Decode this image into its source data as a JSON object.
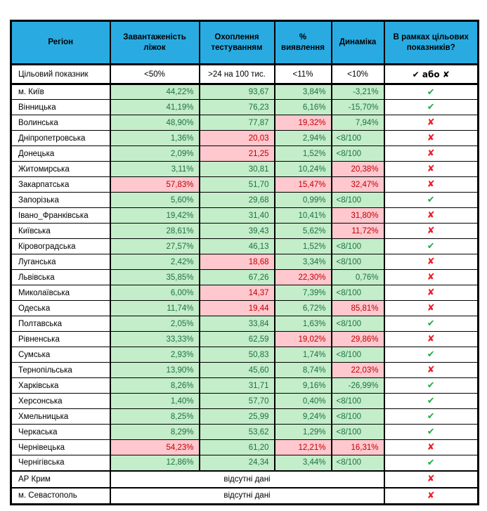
{
  "colors": {
    "header_bg": "#29ABE2",
    "good_bg": "#C4EDC9",
    "good_text": "#1E7145",
    "bad_bg": "#FFC7CE",
    "bad_text": "#C00000",
    "check_green": "#22AC41",
    "cross_red": "#ED1C24",
    "border": "#000000"
  },
  "glyphs": {
    "check": "✔",
    "cross": "✘"
  },
  "table": {
    "columns": [
      "Регіон",
      "Завантаженість ліжок",
      "Охоплення тестуванням",
      "% виявлення",
      "Динаміка",
      "В рамках цільових показників?"
    ],
    "target_row": {
      "label": "Цільовий показник",
      "values": [
        "<50%",
        ">24 на 100 тис.",
        "<11%",
        "<10%",
        "✔ або ✘"
      ]
    },
    "no_data_text": "відсутні дані",
    "rows": [
      {
        "region": "м. Київ",
        "beds": {
          "v": "44,22%",
          "s": "g"
        },
        "testing": {
          "v": "93,67",
          "s": "g"
        },
        "detection": {
          "v": "3,84%",
          "s": "g"
        },
        "dynamics": {
          "v": "-3,21%",
          "s": "g"
        },
        "ok": true
      },
      {
        "region": "Вінницька",
        "beds": {
          "v": "41,19%",
          "s": "g"
        },
        "testing": {
          "v": "76,23",
          "s": "g"
        },
        "detection": {
          "v": "6,16%",
          "s": "g"
        },
        "dynamics": {
          "v": "-15,70%",
          "s": "g"
        },
        "ok": true
      },
      {
        "region": "Волинська",
        "beds": {
          "v": "48,90%",
          "s": "g"
        },
        "testing": {
          "v": "77,87",
          "s": "g"
        },
        "detection": {
          "v": "19,32%",
          "s": "b"
        },
        "dynamics": {
          "v": "7,94%",
          "s": "g"
        },
        "ok": false
      },
      {
        "region": "Дніпропетровська",
        "beds": {
          "v": "1,36%",
          "s": "g"
        },
        "testing": {
          "v": "20,03",
          "s": "b"
        },
        "detection": {
          "v": "2,94%",
          "s": "g"
        },
        "dynamics": {
          "v": "<8/100",
          "s": "g",
          "left": true
        },
        "ok": false
      },
      {
        "region": "Донецька",
        "beds": {
          "v": "2,09%",
          "s": "g"
        },
        "testing": {
          "v": "21,25",
          "s": "b"
        },
        "detection": {
          "v": "1,52%",
          "s": "g"
        },
        "dynamics": {
          "v": "<8/100",
          "s": "g",
          "left": true
        },
        "ok": false
      },
      {
        "region": "Житомирська",
        "beds": {
          "v": "3,11%",
          "s": "g"
        },
        "testing": {
          "v": "30,81",
          "s": "g"
        },
        "detection": {
          "v": "10,24%",
          "s": "g"
        },
        "dynamics": {
          "v": "20,38%",
          "s": "b"
        },
        "ok": false
      },
      {
        "region": "Закарпатська",
        "beds": {
          "v": "57,83%",
          "s": "b"
        },
        "testing": {
          "v": "51,70",
          "s": "g"
        },
        "detection": {
          "v": "15,47%",
          "s": "b"
        },
        "dynamics": {
          "v": "32,47%",
          "s": "b"
        },
        "ok": false
      },
      {
        "region": "Запорізька",
        "beds": {
          "v": "5,60%",
          "s": "g"
        },
        "testing": {
          "v": "29,68",
          "s": "g"
        },
        "detection": {
          "v": "0,99%",
          "s": "g"
        },
        "dynamics": {
          "v": "<8/100",
          "s": "g",
          "left": true
        },
        "ok": true
      },
      {
        "region": "Івано_Франківська",
        "beds": {
          "v": "19,42%",
          "s": "g"
        },
        "testing": {
          "v": "31,40",
          "s": "g"
        },
        "detection": {
          "v": "10,41%",
          "s": "g"
        },
        "dynamics": {
          "v": "31,80%",
          "s": "b"
        },
        "ok": false
      },
      {
        "region": "Київська",
        "beds": {
          "v": "28,61%",
          "s": "g"
        },
        "testing": {
          "v": "39,43",
          "s": "g"
        },
        "detection": {
          "v": "5,62%",
          "s": "g"
        },
        "dynamics": {
          "v": "11,72%",
          "s": "b"
        },
        "ok": false
      },
      {
        "region": "Кіровоградська",
        "beds": {
          "v": "27,57%",
          "s": "g"
        },
        "testing": {
          "v": "46,13",
          "s": "g"
        },
        "detection": {
          "v": "1,52%",
          "s": "g"
        },
        "dynamics": {
          "v": "<8/100",
          "s": "g",
          "left": true
        },
        "ok": true
      },
      {
        "region": "Луганська",
        "beds": {
          "v": "2,42%",
          "s": "g"
        },
        "testing": {
          "v": "18,68",
          "s": "b"
        },
        "detection": {
          "v": "3,34%",
          "s": "g"
        },
        "dynamics": {
          "v": "<8/100",
          "s": "g",
          "left": true
        },
        "ok": false
      },
      {
        "region": "Львівська",
        "beds": {
          "v": "35,85%",
          "s": "g"
        },
        "testing": {
          "v": "67,26",
          "s": "g"
        },
        "detection": {
          "v": "22,30%",
          "s": "b"
        },
        "dynamics": {
          "v": "0,76%",
          "s": "g"
        },
        "ok": false
      },
      {
        "region": "Миколаївська",
        "beds": {
          "v": "6,00%",
          "s": "g"
        },
        "testing": {
          "v": "14,37",
          "s": "b"
        },
        "detection": {
          "v": "7,39%",
          "s": "g"
        },
        "dynamics": {
          "v": "<8/100",
          "s": "g",
          "left": true
        },
        "ok": false
      },
      {
        "region": "Одеська",
        "beds": {
          "v": "11,74%",
          "s": "g"
        },
        "testing": {
          "v": "19,44",
          "s": "b"
        },
        "detection": {
          "v": "6,72%",
          "s": "g"
        },
        "dynamics": {
          "v": "85,81%",
          "s": "b"
        },
        "ok": false
      },
      {
        "region": "Полтавська",
        "beds": {
          "v": "2,05%",
          "s": "g"
        },
        "testing": {
          "v": "33,84",
          "s": "g"
        },
        "detection": {
          "v": "1,63%",
          "s": "g"
        },
        "dynamics": {
          "v": "<8/100",
          "s": "g",
          "left": true
        },
        "ok": true
      },
      {
        "region": "Рівненська",
        "beds": {
          "v": "33,33%",
          "s": "g"
        },
        "testing": {
          "v": "62,59",
          "s": "g"
        },
        "detection": {
          "v": "19,02%",
          "s": "b"
        },
        "dynamics": {
          "v": "29,86%",
          "s": "b"
        },
        "ok": false
      },
      {
        "region": "Сумська",
        "beds": {
          "v": "2,93%",
          "s": "g"
        },
        "testing": {
          "v": "50,83",
          "s": "g"
        },
        "detection": {
          "v": "1,74%",
          "s": "g"
        },
        "dynamics": {
          "v": "<8/100",
          "s": "g",
          "left": true
        },
        "ok": true
      },
      {
        "region": "Тернопільська",
        "beds": {
          "v": "13,90%",
          "s": "g"
        },
        "testing": {
          "v": "45,60",
          "s": "g"
        },
        "detection": {
          "v": "8,74%",
          "s": "g"
        },
        "dynamics": {
          "v": "22,03%",
          "s": "b"
        },
        "ok": false
      },
      {
        "region": "Харківська",
        "beds": {
          "v": "8,26%",
          "s": "g"
        },
        "testing": {
          "v": "31,71",
          "s": "g"
        },
        "detection": {
          "v": "9,16%",
          "s": "g"
        },
        "dynamics": {
          "v": "-26,99%",
          "s": "g"
        },
        "ok": true
      },
      {
        "region": "Херсонська",
        "beds": {
          "v": "1,40%",
          "s": "g"
        },
        "testing": {
          "v": "57,70",
          "s": "g"
        },
        "detection": {
          "v": "0,40%",
          "s": "g"
        },
        "dynamics": {
          "v": "<8/100",
          "s": "g",
          "left": true
        },
        "ok": true
      },
      {
        "region": "Хмельницька",
        "beds": {
          "v": "8,25%",
          "s": "g"
        },
        "testing": {
          "v": "25,99",
          "s": "g"
        },
        "detection": {
          "v": "9,24%",
          "s": "g"
        },
        "dynamics": {
          "v": "<8/100",
          "s": "g",
          "left": true
        },
        "ok": true
      },
      {
        "region": "Черкаська",
        "beds": {
          "v": "8,29%",
          "s": "g"
        },
        "testing": {
          "v": "53,62",
          "s": "g"
        },
        "detection": {
          "v": "1,29%",
          "s": "g"
        },
        "dynamics": {
          "v": "<8/100",
          "s": "g",
          "left": true
        },
        "ok": true
      },
      {
        "region": "Чернівецька",
        "beds": {
          "v": "54,23%",
          "s": "b"
        },
        "testing": {
          "v": "61,20",
          "s": "g"
        },
        "detection": {
          "v": "12,21%",
          "s": "b"
        },
        "dynamics": {
          "v": "16,31%",
          "s": "b"
        },
        "ok": false
      },
      {
        "region": "Чернігівська",
        "beds": {
          "v": "12,86%",
          "s": "g"
        },
        "testing": {
          "v": "24,34",
          "s": "g"
        },
        "detection": {
          "v": "3,44%",
          "s": "g"
        },
        "dynamics": {
          "v": "<8/100",
          "s": "g",
          "left": true
        },
        "ok": true
      },
      {
        "region": "АР Крим",
        "no_data": true,
        "ok": false
      },
      {
        "region": "м. Севастополь",
        "no_data": true,
        "ok": false
      }
    ]
  }
}
